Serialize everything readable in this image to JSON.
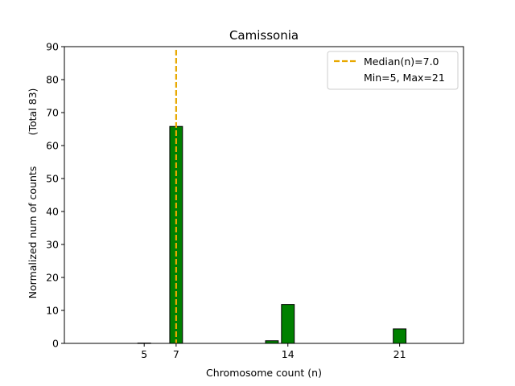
{
  "chart_data": {
    "type": "bar",
    "title": "Camissonia",
    "xlabel": "Chromosome count (n)",
    "ylabel": "Normalized num of counts",
    "ylabel_secondary": "(Total 83)",
    "x": [
      5,
      7,
      13,
      14,
      21
    ],
    "values": [
      0.1,
      65.8,
      0.8,
      11.8,
      4.4
    ],
    "xticks": [
      5,
      7,
      14,
      21
    ],
    "yticks": [
      0,
      10,
      20,
      30,
      40,
      50,
      60,
      70,
      80,
      90
    ],
    "xlim": [
      0,
      25
    ],
    "ylim": [
      0,
      90
    ],
    "bar_color": "#008000",
    "bar_edge_color": "#000000",
    "median": {
      "value": 7.0,
      "label": "Median(n)=7.0",
      "color": "#e8a800"
    },
    "range_label": "Min=5, Max=21",
    "legend_position": "top-right",
    "grid": false
  }
}
